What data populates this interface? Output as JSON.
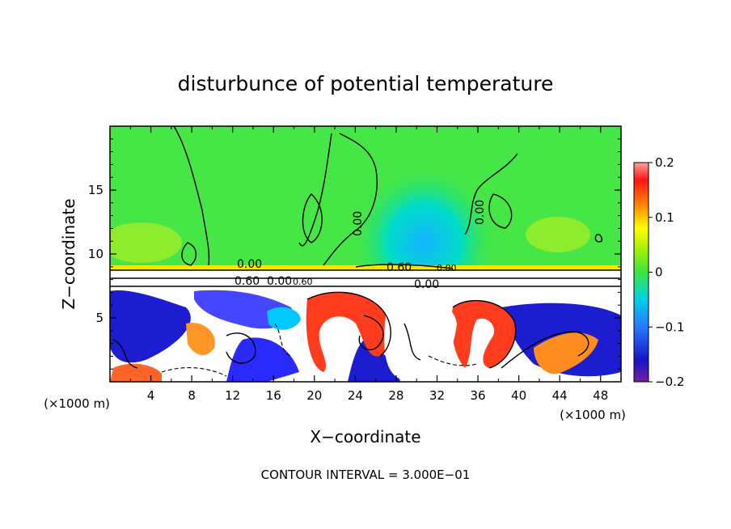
{
  "chart_data": {
    "type": "heatmap",
    "title": "disturbunce of potential temperature",
    "xlabel": "X−coordinate",
    "ylabel": "Z−coordinate",
    "x_unit": "(×1000 m)",
    "z_unit": "(×1000 m)",
    "xlim": [
      0,
      50
    ],
    "ylim": [
      0,
      20
    ],
    "x_ticks": [
      4,
      8,
      12,
      16,
      20,
      24,
      28,
      32,
      36,
      40,
      44,
      48
    ],
    "y_ticks": [
      5,
      10,
      15
    ],
    "colorbar": {
      "range": [
        -0.2,
        0.2
      ],
      "tick_values": [
        0.2,
        0.1,
        0,
        -0.1,
        -0.2
      ],
      "tick_labels": [
        "0.2",
        "0.1",
        "0",
        "−0.1",
        "−0.2"
      ]
    },
    "contour_labels": [
      "0.00",
      "0.00",
      "0.00",
      "0.00",
      "0.60",
      "0.60",
      "0.00",
      "0.60",
      "0.00"
    ],
    "footer": "CONTOUR INTERVAL = 3.000E−01",
    "colors": {
      "upper_field": "#46e646",
      "lower_field": "#ffffff",
      "cold_anomaly": "#1c1cd0",
      "warm_anomaly": "#ff3c1e"
    }
  }
}
